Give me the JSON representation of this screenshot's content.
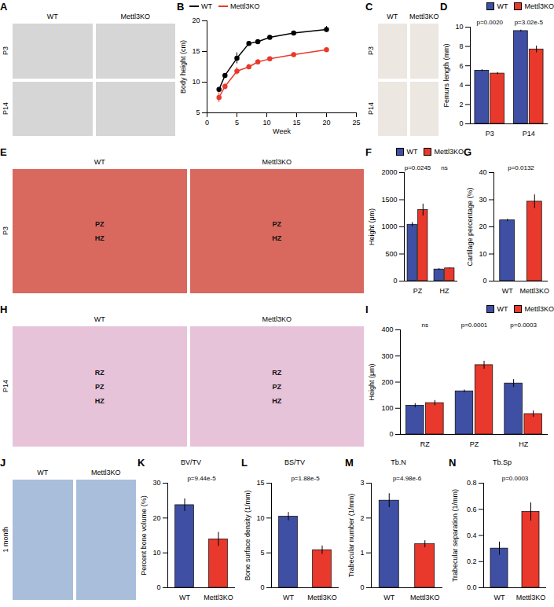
{
  "chart_data": [
    {
      "panel": "B",
      "type": "line",
      "xlabel": "Week",
      "ylabel": "Body height (cm)",
      "x": [
        2,
        3,
        5,
        7,
        8.5,
        10.5,
        14.5,
        20
      ],
      "series": [
        {
          "name": "WT",
          "color": "#000000",
          "marker": "circle",
          "values": [
            8.8,
            11.1,
            13.9,
            16.3,
            16.6,
            17.3,
            18.0,
            18.6
          ],
          "errors": [
            0.2,
            0.3,
            0.9,
            0.3,
            0.3,
            0.3,
            0.3,
            0.5
          ]
        },
        {
          "name": "Mettl3KO",
          "color": "#e8392c",
          "marker": "circle",
          "values": [
            7.5,
            9.3,
            11.8,
            12.5,
            13.3,
            13.8,
            14.5,
            15.3
          ],
          "errors": [
            0.8,
            0.5,
            0.6,
            0.4,
            0.4,
            0.3,
            0.3,
            0.3
          ]
        }
      ],
      "xlim": [
        0,
        25
      ],
      "xticks": [
        0,
        5,
        10,
        15,
        20,
        25
      ],
      "ylim": [
        5,
        20
      ],
      "yticks": [
        5,
        10,
        15,
        20
      ],
      "legend": "top-left"
    },
    {
      "panel": "D",
      "type": "bar",
      "ylabel": "Femurs length (mm)",
      "categories": [
        "P3",
        "P14"
      ],
      "series": [
        {
          "name": "WT",
          "color": "#3f4fa3",
          "values": [
            5.5,
            9.6
          ],
          "errors": [
            0.1,
            0.1
          ]
        },
        {
          "name": "Mettl3KO",
          "color": "#e8392c",
          "values": [
            5.2,
            7.7
          ],
          "errors": [
            0.12,
            0.35
          ]
        }
      ],
      "ylim": [
        0,
        10
      ],
      "yticks": [
        0,
        2,
        4,
        6,
        8,
        10
      ],
      "legend": "top-right",
      "annotations": [
        {
          "category": "P3",
          "text": "p=0.0020"
        },
        {
          "category": "P14",
          "text": "p=3.02e-5"
        }
      ]
    },
    {
      "panel": "F",
      "type": "bar",
      "ylabel": "Height (μm)",
      "categories": [
        "PZ",
        "HZ"
      ],
      "series": [
        {
          "name": "WT",
          "color": "#3f4fa3",
          "values": [
            1040,
            215
          ],
          "errors": [
            40,
            15
          ]
        },
        {
          "name": "Mettl3KO",
          "color": "#e8392c",
          "values": [
            1310,
            235
          ],
          "errors": [
            110,
            10
          ]
        }
      ],
      "ylim": [
        0,
        2000
      ],
      "yticks": [
        0,
        500,
        1000,
        1500,
        2000
      ],
      "legend": "top-right",
      "annotations": [
        {
          "category": "PZ",
          "text": "p=0.0245"
        },
        {
          "category": "HZ",
          "text": "ns"
        }
      ]
    },
    {
      "panel": "G",
      "type": "bar",
      "ylabel": "Cartilage percentage (%)",
      "categories": [
        "WT",
        "Mettl3KO"
      ],
      "values": [
        22.4,
        29.3
      ],
      "errors": [
        0.4,
        2.5
      ],
      "colors": [
        "#3f4fa3",
        "#e8392c"
      ],
      "ylim": [
        0,
        40
      ],
      "yticks": [
        0,
        10,
        20,
        30,
        40
      ],
      "annotations": [
        {
          "text": "p=0.0132"
        }
      ]
    },
    {
      "panel": "I",
      "type": "bar",
      "ylabel": "Height (μm)",
      "categories": [
        "RZ",
        "PZ",
        "HZ"
      ],
      "series": [
        {
          "name": "WT",
          "color": "#3f4fa3",
          "values": [
            110,
            165,
            195
          ],
          "errors": [
            8,
            5,
            15
          ]
        },
        {
          "name": "Mettl3KO",
          "color": "#e8392c",
          "values": [
            120,
            265,
            78
          ],
          "errors": [
            10,
            15,
            12
          ]
        }
      ],
      "ylim": [
        0,
        400
      ],
      "yticks": [
        0,
        100,
        200,
        300,
        400
      ],
      "legend": "top-right",
      "annotations": [
        {
          "category": "RZ",
          "text": "ns"
        },
        {
          "category": "PZ",
          "text": "p=0.0001"
        },
        {
          "category": "HZ",
          "text": "p=0.0003"
        }
      ]
    },
    {
      "panel": "K",
      "type": "bar",
      "title": "BV/TV",
      "ylabel": "Percent bone volume (%)",
      "categories": [
        "WT",
        "Mettl3KO"
      ],
      "values": [
        23.7,
        13.9
      ],
      "errors": [
        1.8,
        2.0
      ],
      "colors": [
        "#3f4fa3",
        "#e8392c"
      ],
      "ylim": [
        0,
        30
      ],
      "yticks": [
        0,
        10,
        20,
        30
      ],
      "annotations": [
        {
          "text": "p=9.44e-5"
        }
      ]
    },
    {
      "panel": "L",
      "type": "bar",
      "title": "BS/TV",
      "ylabel": "Bone surface density (1/mm)",
      "categories": [
        "WT",
        "Mettl3KO"
      ],
      "values": [
        10.2,
        5.4
      ],
      "errors": [
        0.6,
        0.6
      ],
      "colors": [
        "#3f4fa3",
        "#e8392c"
      ],
      "ylim": [
        0,
        15
      ],
      "yticks": [
        0,
        5,
        10,
        15
      ],
      "annotations": [
        {
          "text": "p=1.88e-5"
        }
      ]
    },
    {
      "panel": "M",
      "type": "bar",
      "title": "Tb.N",
      "ylabel": "Trabecular number (1/mm)",
      "categories": [
        "WT",
        "Mettl3KO"
      ],
      "values": [
        2.5,
        1.25
      ],
      "errors": [
        0.2,
        0.1
      ],
      "colors": [
        "#3f4fa3",
        "#e8392c"
      ],
      "ylim": [
        0,
        3
      ],
      "yticks": [
        0,
        1,
        2,
        3
      ],
      "annotations": [
        {
          "text": "p=4.98e-6"
        }
      ]
    },
    {
      "panel": "N",
      "type": "bar",
      "title": "Tb.Sp",
      "ylabel": "Trabecular separation (1/mm)",
      "categories": [
        "WT",
        "Mettl3KO"
      ],
      "values": [
        0.3,
        0.58
      ],
      "errors": [
        0.05,
        0.07
      ],
      "colors": [
        "#3f4fa3",
        "#e8392c"
      ],
      "ylim": [
        0,
        0.8
      ],
      "yticks": [
        {
          "value": 0,
          "label": "0.0"
        },
        0.2,
        0.4,
        0.6,
        0.8
      ],
      "annotations": [
        {
          "text": "p=0.0003"
        }
      ]
    }
  ],
  "image_panels": [
    {
      "panel": "A",
      "columns": [
        "WT",
        "Mettl3KO"
      ],
      "rows": [
        "P3",
        "P14"
      ]
    },
    {
      "panel": "C",
      "columns": [
        "WT",
        "Mettl3KO"
      ],
      "rows": [
        "P3",
        "P14"
      ]
    },
    {
      "panel": "E",
      "columns": [
        "WT",
        "Mettl3KO"
      ],
      "rows": [
        "P3"
      ],
      "regions": [
        "PZ",
        "HZ"
      ]
    },
    {
      "panel": "H",
      "columns": [
        "WT",
        "Mettl3KO"
      ],
      "rows": [
        "P14"
      ],
      "regions": [
        "RZ",
        "PZ",
        "HZ"
      ]
    },
    {
      "panel": "J",
      "columns": [
        "WT",
        "Mettl3KO"
      ],
      "rows": [
        "1 month"
      ]
    }
  ]
}
